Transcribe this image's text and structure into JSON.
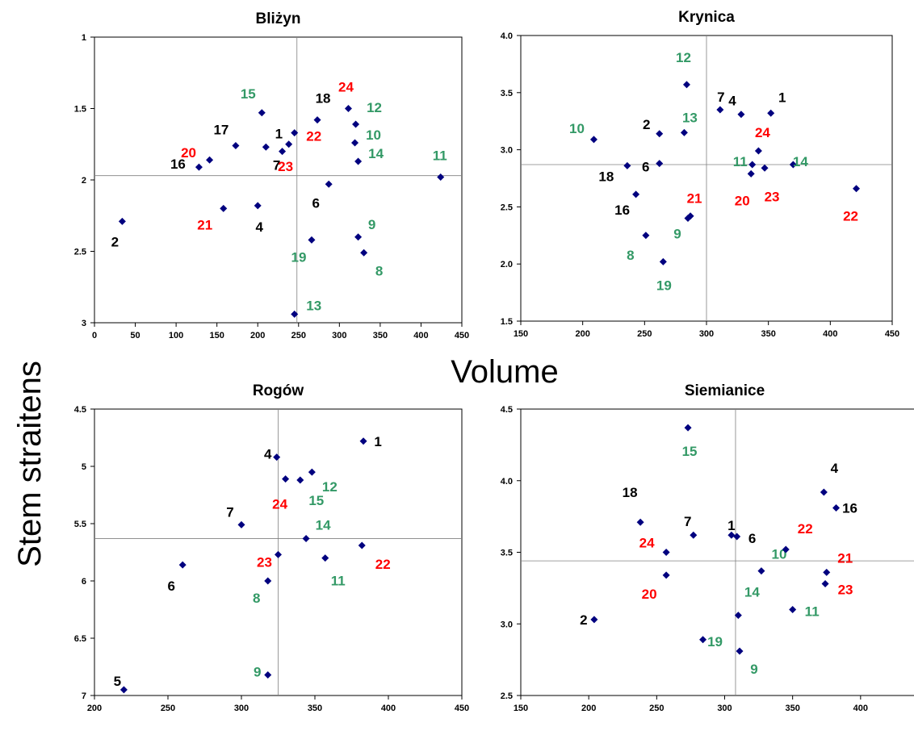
{
  "figure": {
    "xlabel": "Volume",
    "ylabel": "Stem straitens"
  },
  "colors": {
    "marker": "#00007f",
    "black_label": "#000000",
    "red_label": "#ff0000",
    "green_label": "#339966",
    "axis": "#000000",
    "crosshair": "#808080"
  },
  "chart_data": [
    {
      "type": "scatter",
      "title": "Bliżyn",
      "xlim": [
        0,
        450
      ],
      "ylim": [
        1,
        3
      ],
      "y_inverted": true,
      "xticks": [
        0,
        50,
        100,
        150,
        200,
        250,
        300,
        350,
        400,
        450
      ],
      "yticks": [
        "1",
        "1.5",
        "2",
        "2.5",
        "3"
      ],
      "ytick_values": [
        1,
        1.5,
        2,
        2.5,
        3
      ],
      "reference_x": 248,
      "reference_y": 1.97,
      "points": [
        {
          "label": "1",
          "x": 210,
          "y": 1.77,
          "color": "black"
        },
        {
          "label": "2",
          "x": 34,
          "y": 2.29,
          "color": "black"
        },
        {
          "label": "4",
          "x": 200,
          "y": 2.18,
          "color": "black"
        },
        {
          "label": "6",
          "x": 287,
          "y": 2.03,
          "color": "black"
        },
        {
          "label": "7",
          "x": 230,
          "y": 1.8,
          "color": "black"
        },
        {
          "label": "8",
          "x": 330,
          "y": 2.51,
          "color": "green"
        },
        {
          "label": "9",
          "x": 323,
          "y": 2.4,
          "color": "green"
        },
        {
          "label": "10",
          "x": 319,
          "y": 1.74,
          "color": "green"
        },
        {
          "label": "11",
          "x": 424,
          "y": 1.98,
          "color": "green"
        },
        {
          "label": "12",
          "x": 320,
          "y": 1.61,
          "color": "green"
        },
        {
          "label": "13",
          "x": 245,
          "y": 2.94,
          "color": "green"
        },
        {
          "label": "14",
          "x": 323,
          "y": 1.87,
          "color": "green"
        },
        {
          "label": "15",
          "x": 205,
          "y": 1.53,
          "color": "green"
        },
        {
          "label": "16",
          "x": 128,
          "y": 1.91,
          "color": "black"
        },
        {
          "label": "17",
          "x": 173,
          "y": 1.76,
          "color": "black"
        },
        {
          "label": "18",
          "x": 273,
          "y": 1.58,
          "color": "black"
        },
        {
          "label": "19",
          "x": 266,
          "y": 2.42,
          "color": "green"
        },
        {
          "label": "20",
          "x": 141,
          "y": 1.86,
          "color": "red"
        },
        {
          "label": "21",
          "x": 158,
          "y": 2.2,
          "color": "red"
        },
        {
          "label": "22",
          "x": 245,
          "y": 1.67,
          "color": "red"
        },
        {
          "label": "23",
          "x": 238,
          "y": 1.75,
          "color": "red"
        },
        {
          "label": "24",
          "x": 311,
          "y": 1.5,
          "color": "red"
        }
      ]
    },
    {
      "type": "scatter",
      "title": "Krynica",
      "xlim": [
        150,
        450
      ],
      "ylim": [
        1.5,
        4.0
      ],
      "y_inverted": false,
      "xticks": [
        150,
        200,
        250,
        300,
        350,
        400,
        450
      ],
      "yticks": [
        "1.5",
        "2.0",
        "2.5",
        "3.0",
        "3.5",
        "4.0"
      ],
      "ytick_values": [
        1.5,
        2.0,
        2.5,
        3.0,
        3.5,
        4.0
      ],
      "reference_x": 300,
      "reference_y": 2.87,
      "points": [
        {
          "label": "1",
          "x": 352,
          "y": 3.32,
          "color": "black"
        },
        {
          "label": "2",
          "x": 262,
          "y": 3.14,
          "color": "black"
        },
        {
          "label": "4",
          "x": 328,
          "y": 3.31,
          "color": "black"
        },
        {
          "label": "6",
          "x": 262,
          "y": 2.88,
          "color": "black"
        },
        {
          "label": "7",
          "x": 311,
          "y": 3.35,
          "color": "black"
        },
        {
          "label": "8",
          "x": 251,
          "y": 2.25,
          "color": "green"
        },
        {
          "label": "9",
          "x": 285,
          "y": 2.4,
          "color": "green"
        },
        {
          "label": "10",
          "x": 209,
          "y": 3.09,
          "color": "green"
        },
        {
          "label": "11",
          "x": 337,
          "y": 2.87,
          "color": "green"
        },
        {
          "label": "12",
          "x": 284,
          "y": 3.57,
          "color": "green"
        },
        {
          "label": "13",
          "x": 282,
          "y": 3.15,
          "color": "green"
        },
        {
          "label": "14",
          "x": 370,
          "y": 2.87,
          "color": "green"
        },
        {
          "label": "16",
          "x": 243,
          "y": 2.61,
          "color": "black"
        },
        {
          "label": "18",
          "x": 236,
          "y": 2.86,
          "color": "black"
        },
        {
          "label": "19",
          "x": 265,
          "y": 2.02,
          "color": "green"
        },
        {
          "label": "20",
          "x": 336,
          "y": 2.79,
          "color": "red"
        },
        {
          "label": "21",
          "x": 287,
          "y": 2.42,
          "color": "red"
        },
        {
          "label": "22",
          "x": 421,
          "y": 2.66,
          "color": "red"
        },
        {
          "label": "23",
          "x": 347,
          "y": 2.84,
          "color": "red"
        },
        {
          "label": "24",
          "x": 342,
          "y": 2.99,
          "color": "red"
        }
      ]
    },
    {
      "type": "scatter",
      "title": "Rogów",
      "xlim": [
        200,
        450
      ],
      "ylim": [
        4.5,
        7
      ],
      "y_inverted": true,
      "xticks": [
        200,
        250,
        300,
        350,
        400,
        450
      ],
      "yticks": [
        "4.5",
        "5",
        "5.5",
        "6",
        "6.5",
        "7"
      ],
      "ytick_values": [
        4.5,
        5,
        5.5,
        6,
        6.5,
        7
      ],
      "reference_x": 325,
      "reference_y": 5.63,
      "points": [
        {
          "label": "1",
          "x": 383,
          "y": 4.78,
          "color": "black"
        },
        {
          "label": "4",
          "x": 324,
          "y": 4.92,
          "color": "black"
        },
        {
          "label": "5",
          "x": 220,
          "y": 6.95,
          "color": "black"
        },
        {
          "label": "6",
          "x": 260,
          "y": 5.86,
          "color": "black"
        },
        {
          "label": "7",
          "x": 300,
          "y": 5.51,
          "color": "black"
        },
        {
          "label": "8",
          "x": 318,
          "y": 6.0,
          "color": "green"
        },
        {
          "label": "9",
          "x": 318,
          "y": 6.82,
          "color": "green"
        },
        {
          "label": "11",
          "x": 357,
          "y": 5.8,
          "color": "green"
        },
        {
          "label": "12",
          "x": 348,
          "y": 5.05,
          "color": "green"
        },
        {
          "label": "14",
          "x": 344,
          "y": 5.63,
          "color": "green"
        },
        {
          "label": "15",
          "x": 340,
          "y": 5.12,
          "color": "green"
        },
        {
          "label": "22",
          "x": 382,
          "y": 5.69,
          "color": "red"
        },
        {
          "label": "23",
          "x": 325,
          "y": 5.77,
          "color": "red"
        },
        {
          "label": "24",
          "x": 330,
          "y": 5.11,
          "color": "red"
        }
      ]
    },
    {
      "type": "scatter",
      "title": "Siemianice",
      "xlim": [
        150,
        450
      ],
      "ylim": [
        2.5,
        4.5
      ],
      "y_inverted": false,
      "xticks": [
        150,
        200,
        250,
        300,
        350,
        400,
        450
      ],
      "yticks": [
        "2.5",
        "3.0",
        "3.5",
        "4.0",
        "4.5"
      ],
      "ytick_values": [
        2.5,
        3.0,
        3.5,
        4.0,
        4.5
      ],
      "reference_x": 308,
      "reference_y": 3.44,
      "points": [
        {
          "label": "1",
          "x": 305,
          "y": 3.62,
          "color": "black"
        },
        {
          "label": "2",
          "x": 204,
          "y": 3.03,
          "color": "black"
        },
        {
          "label": "4",
          "x": 373,
          "y": 3.92,
          "color": "black"
        },
        {
          "label": "6",
          "x": 309,
          "y": 3.61,
          "color": "black"
        },
        {
          "label": "7",
          "x": 277,
          "y": 3.62,
          "color": "black"
        },
        {
          "label": "9",
          "x": 311,
          "y": 2.81,
          "color": "green"
        },
        {
          "label": "10",
          "x": 327,
          "y": 3.37,
          "color": "green"
        },
        {
          "label": "11",
          "x": 350,
          "y": 3.1,
          "color": "green"
        },
        {
          "label": "14",
          "x": 310,
          "y": 3.06,
          "color": "green"
        },
        {
          "label": "15",
          "x": 273,
          "y": 4.37,
          "color": "green"
        },
        {
          "label": "16",
          "x": 382,
          "y": 3.81,
          "color": "black"
        },
        {
          "label": "18",
          "x": 238,
          "y": 3.71,
          "color": "black"
        },
        {
          "label": "19",
          "x": 284,
          "y": 2.89,
          "color": "green"
        },
        {
          "label": "20",
          "x": 257,
          "y": 3.34,
          "color": "red"
        },
        {
          "label": "21",
          "x": 375,
          "y": 3.36,
          "color": "red"
        },
        {
          "label": "22",
          "x": 345,
          "y": 3.52,
          "color": "red"
        },
        {
          "label": "23",
          "x": 374,
          "y": 3.28,
          "color": "red"
        },
        {
          "label": "24",
          "x": 257,
          "y": 3.5,
          "color": "red"
        }
      ]
    }
  ]
}
